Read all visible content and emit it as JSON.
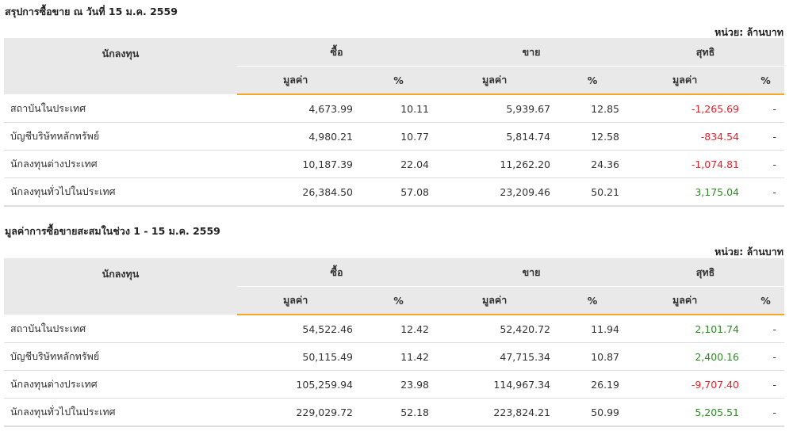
{
  "colors": {
    "accent": "#f5a623",
    "header_bg": "#e9e9e9",
    "positive": "#2e8b24",
    "negative": "#e8212b"
  },
  "tables": [
    {
      "title": "สรุปการซื้อขาย ณ วันที่ 15 ม.ค. 2559",
      "unit": "หน่วย: ล้านบาท",
      "headers": {
        "investor": "นักลงทุน",
        "buy": "ซื้อ",
        "sell": "ขาย",
        "net": "สุทธิ",
        "value": "มูลค่า",
        "percent": "%"
      },
      "rows": [
        {
          "name": "สถาบันในประเทศ",
          "buy_value": "4,673.99",
          "buy_pct": "10.11",
          "sell_value": "5,939.67",
          "sell_pct": "12.85",
          "net_value": "-1,265.69",
          "net_pct": "-"
        },
        {
          "name": "บัญชีบริษัทหลักทรัพย์",
          "buy_value": "4,980.21",
          "buy_pct": "10.77",
          "sell_value": "5,814.74",
          "sell_pct": "12.58",
          "net_value": "-834.54",
          "net_pct": "-"
        },
        {
          "name": "นักลงทุนต่างประเทศ",
          "buy_value": "10,187.39",
          "buy_pct": "22.04",
          "sell_value": "11,262.20",
          "sell_pct": "24.36",
          "net_value": "-1,074.81",
          "net_pct": "-"
        },
        {
          "name": "นักลงทุนทั่วไปในประเทศ",
          "buy_value": "26,384.50",
          "buy_pct": "57.08",
          "sell_value": "23,209.46",
          "sell_pct": "50.21",
          "net_value": "3,175.04",
          "net_pct": "-"
        }
      ]
    },
    {
      "title": "มูลค่าการซื้อขายสะสมในช่วง 1 - 15 ม.ค. 2559",
      "unit": "หน่วย: ล้านบาท",
      "headers": {
        "investor": "นักลงทุน",
        "buy": "ซื้อ",
        "sell": "ขาย",
        "net": "สุทธิ",
        "value": "มูลค่า",
        "percent": "%"
      },
      "rows": [
        {
          "name": "สถาบันในประเทศ",
          "buy_value": "54,522.46",
          "buy_pct": "12.42",
          "sell_value": "52,420.72",
          "sell_pct": "11.94",
          "net_value": "2,101.74",
          "net_pct": "-"
        },
        {
          "name": "บัญชีบริษัทหลักทรัพย์",
          "buy_value": "50,115.49",
          "buy_pct": "11.42",
          "sell_value": "47,715.34",
          "sell_pct": "10.87",
          "net_value": "2,400.16",
          "net_pct": "-"
        },
        {
          "name": "นักลงทุนต่างประเทศ",
          "buy_value": "105,259.94",
          "buy_pct": "23.98",
          "sell_value": "114,967.34",
          "sell_pct": "26.19",
          "net_value": "-9,707.40",
          "net_pct": "-"
        },
        {
          "name": "นักลงทุนทั่วไปในประเทศ",
          "buy_value": "229,029.72",
          "buy_pct": "52.18",
          "sell_value": "223,824.21",
          "sell_pct": "50.99",
          "net_value": "5,205.51",
          "net_pct": "-"
        }
      ]
    }
  ]
}
